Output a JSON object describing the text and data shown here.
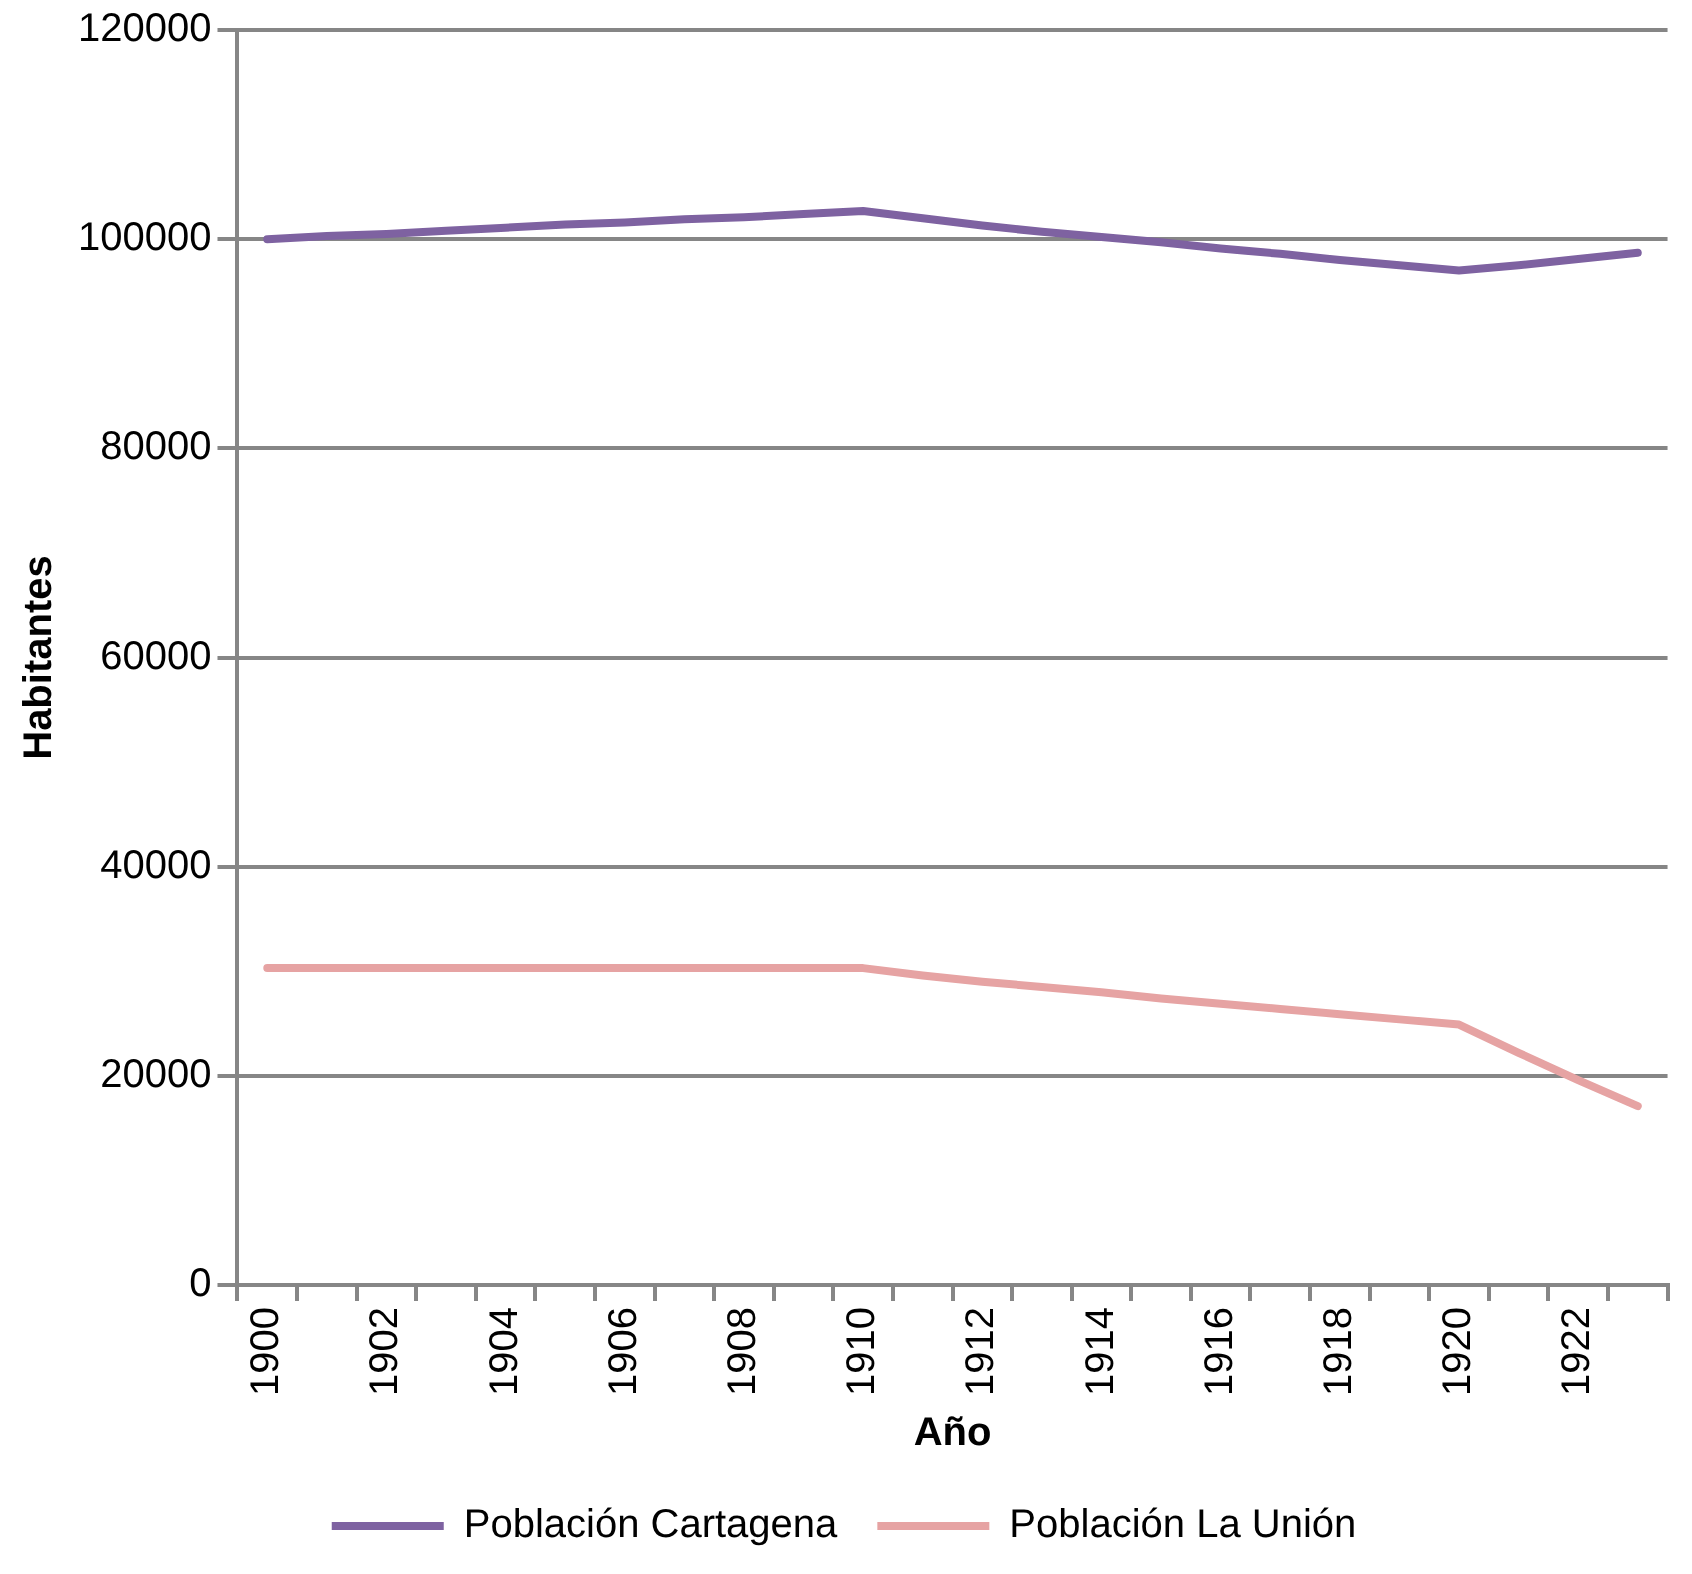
{
  "chart_data": {
    "type": "line",
    "xlabel": "Año",
    "ylabel": "Habitantes",
    "categories": [
      "1900",
      null,
      "1902",
      null,
      "1904",
      null,
      "1906",
      null,
      "1908",
      null,
      "1910",
      null,
      "1912",
      null,
      "1914",
      null,
      "1916",
      null,
      "1918",
      null,
      "1920",
      null,
      "1922",
      null
    ],
    "series": [
      {
        "name": "Población Cartagena",
        "color": "#7e62a1",
        "values": [
          100000,
          100300,
          100500,
          100800,
          101100,
          101400,
          101600,
          101900,
          102100,
          102400,
          102700,
          102000,
          101300,
          100700,
          100200,
          99700,
          99100,
          98600,
          98000,
          97500,
          97000,
          97500,
          98100,
          98700
        ]
      },
      {
        "name": "Población La Unión",
        "color": "#e6a3a3",
        "values": [
          30300,
          30300,
          30300,
          30300,
          30300,
          30300,
          30300,
          30300,
          30300,
          30300,
          30300,
          29600,
          29000,
          28500,
          28000,
          27400,
          26900,
          26400,
          25900,
          25400,
          24900,
          22200,
          19600,
          17100
        ]
      }
    ],
    "ylim": [
      0,
      120000
    ],
    "yticks": [
      0,
      20000,
      40000,
      60000,
      80000,
      100000,
      120000
    ],
    "grid": "y",
    "legend": "bottom",
    "marker": "none",
    "line_style": "solid"
  }
}
